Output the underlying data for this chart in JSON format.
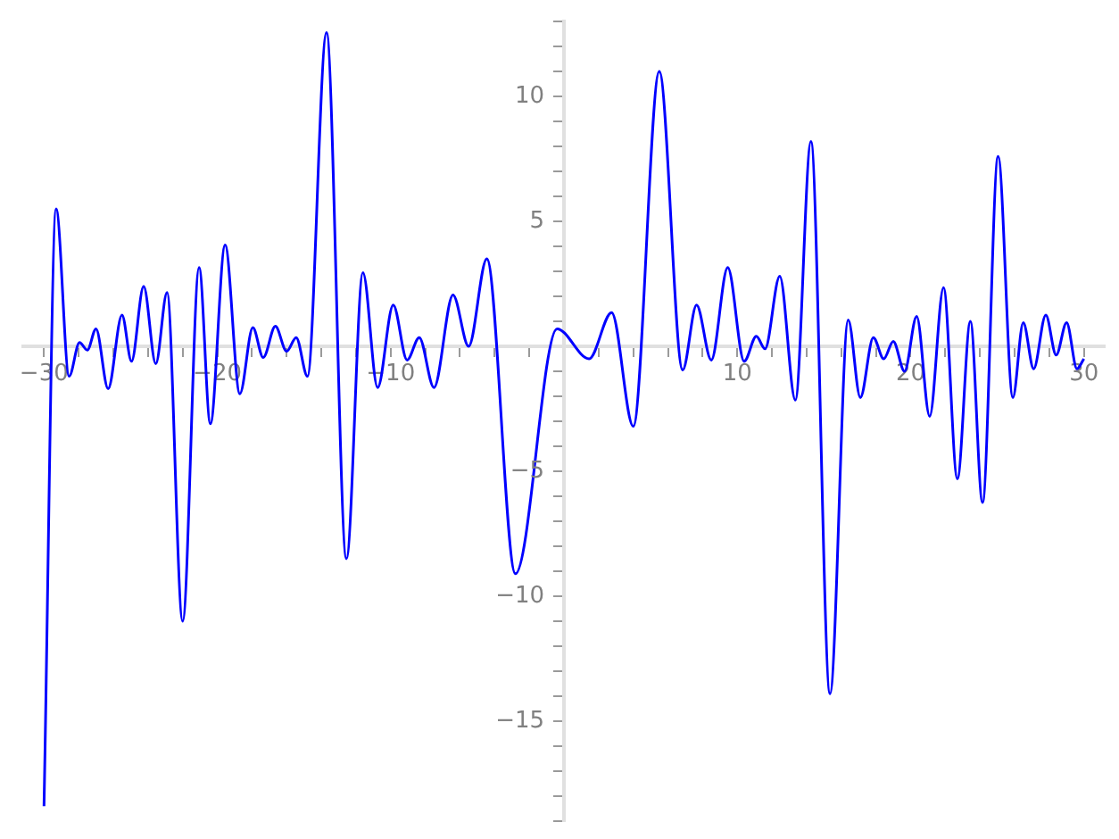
{
  "chart_data": {
    "type": "line",
    "color": "#0000ff",
    "x": [
      -30,
      -29.3,
      -28.55,
      -27.95,
      -27.5,
      -27.0,
      -26.3,
      -25.5,
      -24.95,
      -24.25,
      -23.55,
      -22.9,
      -22.0,
      -21.05,
      -20.4,
      -19.55,
      -18.7,
      -17.95,
      -17.35,
      -16.65,
      -16.0,
      -15.45,
      -14.8,
      -13.7,
      -12.55,
      -11.6,
      -10.75,
      -9.85,
      -9.05,
      -8.35,
      -7.5,
      -6.4,
      -5.5,
      -4.45,
      -2.8,
      -0.4,
      1.45,
      2.75,
      4.0,
      5.5,
      6.85,
      7.65,
      8.5,
      9.45,
      10.4,
      11.1,
      11.6,
      12.45,
      13.35,
      14.25,
      15.35,
      16.4,
      17.1,
      17.85,
      18.45,
      19.0,
      19.65,
      20.35,
      21.1,
      21.9,
      22.7,
      23.45,
      24.15,
      25.05,
      25.9,
      26.5,
      27.1,
      27.8,
      28.4,
      29.0,
      29.6,
      30.0
    ],
    "values": [
      -18.4,
      5.5,
      -1.2,
      0.15,
      -0.15,
      0.7,
      -1.7,
      1.25,
      -0.6,
      2.4,
      -0.7,
      2.15,
      -11.0,
      3.15,
      -3.1,
      4.05,
      -1.9,
      0.75,
      -0.45,
      0.8,
      -0.2,
      0.35,
      -1.2,
      12.55,
      -8.5,
      2.95,
      -1.65,
      1.65,
      -0.55,
      0.35,
      -1.65,
      2.05,
      0.0,
      3.5,
      -9.1,
      0.7,
      -0.5,
      1.35,
      -3.2,
      11.0,
      -0.95,
      1.65,
      -0.55,
      3.15,
      -0.6,
      0.4,
      -0.1,
      2.8,
      -2.15,
      8.2,
      -13.9,
      1.05,
      -2.05,
      0.35,
      -0.5,
      0.2,
      -1.0,
      1.2,
      -2.8,
      2.35,
      -5.3,
      1.0,
      -6.25,
      7.6,
      -2.05,
      0.95,
      -0.9,
      1.25,
      -0.35,
      0.95,
      -0.9,
      -0.5
    ],
    "xlim": [
      -31.2,
      31.2
    ],
    "ylim": [
      -19,
      13
    ],
    "xticks": [
      {
        "value": -30,
        "label": "−30"
      },
      {
        "value": -28,
        "label": null
      },
      {
        "value": -26,
        "label": null
      },
      {
        "value": -24,
        "label": null
      },
      {
        "value": -22,
        "label": null
      },
      {
        "value": -20,
        "label": "−20"
      },
      {
        "value": -18,
        "label": null
      },
      {
        "value": -16,
        "label": null
      },
      {
        "value": -14,
        "label": null
      },
      {
        "value": -12,
        "label": null
      },
      {
        "value": -10,
        "label": "−10"
      },
      {
        "value": -8,
        "label": null
      },
      {
        "value": -6,
        "label": null
      },
      {
        "value": -4,
        "label": null
      },
      {
        "value": -2,
        "label": null
      },
      {
        "value": 0,
        "label": null
      },
      {
        "value": 2,
        "label": null
      },
      {
        "value": 4,
        "label": null
      },
      {
        "value": 6,
        "label": null
      },
      {
        "value": 8,
        "label": null
      },
      10,
      {
        "value": 12,
        "label": null
      },
      {
        "value": 14,
        "label": null
      },
      {
        "value": 16,
        "label": null
      },
      {
        "value": 18,
        "label": null
      },
      20,
      {
        "value": 22,
        "label": null
      },
      {
        "value": 24,
        "label": null
      },
      {
        "value": 26,
        "label": null
      },
      {
        "value": 28,
        "label": null
      },
      30
    ],
    "yticks": [
      {
        "value": -19,
        "label": null
      },
      {
        "value": -18,
        "label": null
      },
      {
        "value": -17,
        "label": null
      },
      {
        "value": -16,
        "label": null
      },
      {
        "value": -15,
        "label": "−15"
      },
      {
        "value": -14,
        "label": null
      },
      {
        "value": -13,
        "label": null
      },
      {
        "value": -12,
        "label": null
      },
      {
        "value": -11,
        "label": null
      },
      {
        "value": -10,
        "label": "−10"
      },
      {
        "value": -9,
        "label": null
      },
      {
        "value": -8,
        "label": null
      },
      {
        "value": -7,
        "label": null
      },
      {
        "value": -6,
        "label": null
      },
      {
        "value": -5,
        "label": "−5"
      },
      {
        "value": -4,
        "label": null
      },
      {
        "value": -3,
        "label": null
      },
      {
        "value": -2,
        "label": null
      },
      {
        "value": -1,
        "label": null
      },
      {
        "value": 0,
        "label": null
      },
      {
        "value": 1,
        "label": null
      },
      {
        "value": 2,
        "label": null
      },
      {
        "value": 3,
        "label": null
      },
      {
        "value": 4,
        "label": null
      },
      5,
      {
        "value": 6,
        "label": null
      },
      {
        "value": 7,
        "label": null
      },
      {
        "value": 8,
        "label": null
      },
      {
        "value": 9,
        "label": null
      },
      10,
      {
        "value": 11,
        "label": null
      },
      {
        "value": 12,
        "label": null
      },
      {
        "value": 13,
        "label": null
      }
    ]
  }
}
